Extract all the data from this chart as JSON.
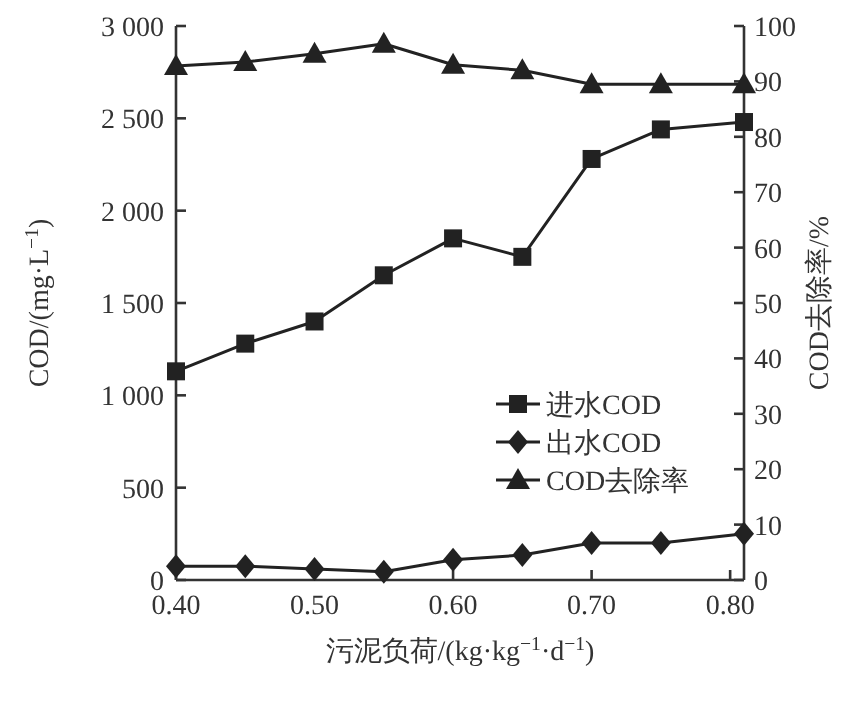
{
  "chart_data": {
    "type": "line",
    "xlabel": "污泥负荷/(kg·kg$^{−1}$·d$^{−1}$)",
    "ylabel": "COD/(mg·L$^{−1}$)",
    "y2label": "COD去除率/%",
    "x": [
      0.4,
      0.45,
      0.5,
      0.55,
      0.6,
      0.65,
      0.7,
      0.75,
      0.81
    ],
    "xlim": [
      0.4,
      0.81
    ],
    "xticks": [
      {
        "value": 0.4,
        "label": "0.40"
      },
      {
        "value": 0.5,
        "label": "0.50"
      },
      {
        "value": 0.6,
        "label": "0.60"
      },
      {
        "value": 0.7,
        "label": "0.70"
      },
      {
        "value": 0.8,
        "label": "0.80"
      }
    ],
    "ylim": [
      0,
      3000
    ],
    "yticks": [
      0,
      500,
      {
        "value": 1000,
        "label": "1 000"
      },
      {
        "value": 1500,
        "label": "1 500"
      },
      {
        "value": 2000,
        "label": "2 000"
      },
      {
        "value": 2500,
        "label": "2 500"
      },
      {
        "value": 3000,
        "label": "3 000"
      }
    ],
    "y2lim": [
      0,
      100
    ],
    "y2ticks": [
      0,
      10,
      20,
      30,
      40,
      50,
      60,
      70,
      80,
      90,
      100
    ],
    "legend": "right",
    "grid": false,
    "line_style": "solid",
    "series": [
      {
        "name": "进水COD",
        "color": "#222222",
        "marker": "square",
        "values": [
          1130,
          1280,
          1400,
          1650,
          1850,
          1750,
          2280,
          2440,
          2480
        ]
      },
      {
        "name": "出水COD",
        "color": "#222222",
        "marker": "diamond",
        "values": [
          75,
          75,
          60,
          45,
          110,
          135,
          200,
          200,
          250
        ]
      },
      {
        "name": "COD去除率",
        "color": "#222222",
        "marker": "triangle",
        "axis": "y2",
        "values": [
          92.8,
          93.5,
          95,
          96.8,
          93,
          92,
          89.5,
          89.5,
          89.5
        ]
      }
    ]
  }
}
